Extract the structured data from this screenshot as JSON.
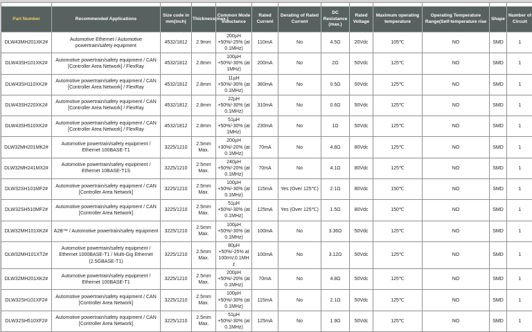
{
  "colors": {
    "header_bg": "#57615f",
    "header_text": "#ffffff",
    "part_number_header_text": "#f2cf63",
    "grid_border": "#8f8f8f",
    "page_bg": "#d8d8d8"
  },
  "table": {
    "headers": [
      "Part Number",
      "Recommended Applications",
      "Size code in mm(inch)",
      "Thickness(max.)",
      "Common Mode Inductance",
      "Rated Current",
      "Derating of Rated Current",
      "DC Resistance (max.)",
      "Rated Voltage",
      "Maximum operating temperature",
      "Operating Temperature Range(Self-temperature rise",
      "Shape",
      "Number of Circuit"
    ],
    "rows": [
      [
        "DLW43MH201XK2#",
        "Automotive Ethernet / Automotive powertrain/safety equipment",
        "4532/1812",
        "2.9mm",
        "200µH +50%/-25% (at 0.1MHz)",
        "110mA",
        "No",
        "4.5Ω",
        "20Vdc",
        "105℃",
        "NO",
        "SMD",
        "1"
      ],
      [
        "DLW43SH101XK2#",
        "Automotive powertrain/safety equipment / CAN [Controller Area Network] / FlexRay",
        "4532/1812",
        "2.8mm",
        "100µH +50%/-30% (at 1MHz)",
        "200mA",
        "No",
        "2Ω",
        "50Vdc",
        "125℃",
        "NO",
        "SMD",
        "1"
      ],
      [
        "DLW43SH110XK2#",
        "Automotive powertrain/safety equipment / CAN [Controller Area Network] / FlexRay",
        "4532/1812",
        "2.8mm",
        "11µH +50%/-30% (at 0.1MHz)",
        "360mA",
        "No",
        "0.5Ω",
        "50Vdc",
        "125℃",
        "NO",
        "SMD",
        "1"
      ],
      [
        "DLW43SH220XK2#",
        "Automotive powertrain/safety equipment / CAN [Controller Area Network] / FlexRay",
        "4532/1812",
        "2.8mm",
        "22µH +50%/-30% (at 0.1MHz)",
        "310mA",
        "No",
        "0.6Ω",
        "50Vdc",
        "125℃",
        "NO",
        "SMD",
        "1"
      ],
      [
        "DLW43SH510XK2#",
        "Automotive powertrain/safety equipment / CAN [Controller Area Network] / FlexRay",
        "4532/1812",
        "2.8mm",
        "51µH +50%/-30% (at 1MHz)",
        "230mA",
        "No",
        "1Ω",
        "50Vdc",
        "125℃",
        "NO",
        "SMD",
        "1"
      ],
      [
        "DLW32MH201MK2#",
        "Automotive powertrain/safety equipment / Ethernet 100BASE-T1",
        "3225/1210",
        "2.5mm Max.",
        "200µH +30%/-20% (at 0.1MHz)",
        "70mA",
        "No",
        "4.8Ω",
        "80Vdc",
        "125℃",
        "NO",
        "SMD",
        "1"
      ],
      [
        "DLW32MH241MX2#",
        "Automotive powertrain/safety equipment / Ethernet 10BASE-T1S",
        "3225/1210",
        "2.5mm Max.",
        "240µH +50%/-20% (at 0.1MHz)",
        "70mA",
        "No",
        "4.1Ω",
        "80Vdc",
        "125℃",
        "NO",
        "SMD",
        "1"
      ],
      [
        "DLW32SH101MF2#",
        "Automotive powertrain/safety equipment / CAN [Controller Area Network]",
        "3225/1210",
        "2.5mm Max.",
        "100µH +50%/-30% (at 0.1MHz)",
        "115mA",
        "Yes (Over 125℃)",
        "2.1Ω",
        "80Vdc",
        "150℃",
        "NO",
        "SMD",
        "1"
      ],
      [
        "DLW32SH510MF2#",
        "Automotive powertrain/safety equipment / CAN [Controller Area Network]",
        "3225/1210",
        "2.5mm Max.",
        "51µH +50%/-30% (at 0.1MHz)",
        "125mA",
        "Yes (Over 125℃)",
        "1.5Ω",
        "80Vdc",
        "150℃",
        "NO",
        "SMD",
        "1"
      ],
      [
        "DLW32MH101XK2#",
        "A2B™ / Automotive powertrain/safety equipment",
        "3225/1210",
        "2.5mm Max.",
        "100µH +50%/-30% (at 0.1MHz)",
        "100mA",
        "No",
        "3.36Ω",
        "50Vdc",
        "125℃",
        "NO",
        "SMD",
        "1"
      ],
      [
        "DLW32MH101XT2#",
        "Automotive powertrain/safety equipment / Ethernet 1000BASE-T1 / Multi-Gig Ethernet (2.5GBASE-T1)",
        "3225/1210",
        "2.5mm Max.",
        "80µH +50%/-25% at 100mV,0.1MHz",
        "100mA",
        "No",
        "3.12Ω",
        "50Vdc",
        "125℃",
        "NO",
        "SMD",
        "1"
      ],
      [
        "DLW32MH201XK2#",
        "Automotive powertrain/safety equipment / Ethernet 100BASE-T1",
        "3225/1210",
        "2.5mm Max.",
        "200µH +50%/-20% (at 0.1MHz)",
        "70mA",
        "No",
        "4.8Ω",
        "50Vdc",
        "125℃",
        "NO",
        "SMD",
        "1"
      ],
      [
        "DLW32SH101XF2#",
        "Automotive powertrain/safety equipment / CAN [Controller Area Network]",
        "3225/1210",
        "2.5mm Max.",
        "100µH +50%/-30% (at 0.1MHz)",
        "115mA",
        "No",
        "2.1Ω",
        "50Vdc",
        "125℃",
        "NO",
        "SMD",
        "1"
      ],
      [
        "DLW32SH510XF2#",
        "Automotive powertrain/safety equipment / CAN [Controller Area Network]",
        "3225/1210",
        "2.5mm Max.",
        "51µH +50%/-30% (at 0.1MHz)",
        "125mA",
        "No",
        "1.9Ω",
        "50Vdc",
        "125℃",
        "NO",
        "SMD",
        "1"
      ]
    ]
  }
}
